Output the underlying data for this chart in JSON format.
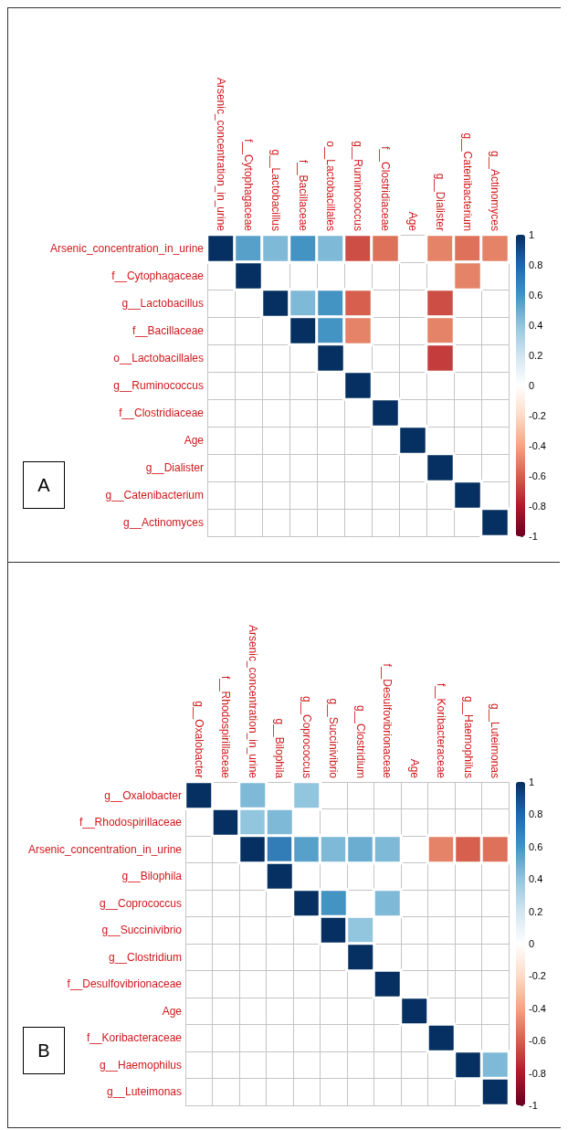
{
  "chart_data": [
    {
      "type": "heatmap",
      "categories": [
        "Arsenic_concentration_in_urine",
        "f__Cytophagaceae",
        "g__Lactobacillus",
        "f__Bacillaceae",
        "o__Lactobacillales",
        "g__Ruminococcus",
        "f__Clostridiaceae",
        "Age",
        "g__Dialister",
        "g__Catenibacterium",
        "g__Actinomyces"
      ],
      "y_categories": [
        "Arsenic_concentration_in_urine",
        "f__Cytophagaceae",
        "g__Lactobacillus",
        "f__Bacillaceae",
        "o__Lactobacillales",
        "g__Ruminococcus",
        "f__Clostridiaceae",
        "Age",
        "g__Dialister",
        "g__Catenibacterium",
        "g__Actinomyces"
      ],
      "cells": [
        [
          1,
          0.55,
          0.45,
          0.6,
          0.45,
          -0.65,
          -0.55,
          null,
          -0.5,
          -0.55,
          -0.5
        ],
        [
          null,
          1,
          null,
          null,
          null,
          null,
          null,
          null,
          null,
          -0.5,
          null
        ],
        [
          null,
          null,
          1,
          0.45,
          0.6,
          -0.6,
          null,
          null,
          -0.65,
          null,
          null
        ],
        [
          null,
          null,
          null,
          1,
          0.6,
          -0.5,
          null,
          null,
          -0.5,
          null,
          null
        ],
        [
          null,
          null,
          null,
          null,
          1,
          null,
          null,
          null,
          -0.7,
          null,
          null
        ],
        [
          null,
          null,
          null,
          null,
          null,
          1,
          null,
          null,
          null,
          null,
          null
        ],
        [
          null,
          null,
          null,
          null,
          null,
          null,
          1,
          null,
          null,
          null,
          null
        ],
        [
          null,
          null,
          null,
          null,
          null,
          null,
          null,
          1,
          null,
          null,
          null
        ],
        [
          null,
          null,
          null,
          null,
          null,
          null,
          null,
          null,
          1,
          null,
          null
        ],
        [
          null,
          null,
          null,
          null,
          null,
          null,
          null,
          null,
          null,
          1,
          null
        ],
        [
          null,
          null,
          null,
          null,
          null,
          null,
          null,
          null,
          null,
          null,
          1
        ]
      ],
      "clim": [
        -1,
        1
      ],
      "cticks": [
        -1,
        -0.8,
        -0.6,
        -0.4,
        -0.2,
        0,
        0.2,
        0.4,
        0.6,
        0.8,
        1
      ],
      "grid": true,
      "annotations": [
        "A"
      ]
    },
    {
      "type": "heatmap",
      "categories": [
        "g__Oxalobacter",
        "f__Rhodospirillaceae",
        "Arsenic_concentration_in_urine",
        "g__Bilophila",
        "g__Coprococcus",
        "g__Succinivibrio",
        "g__Clostridium",
        "f__Desulfovibrionaceae",
        "Age",
        "f__Koribacteraceae",
        "g__Haemophilus",
        "g__Luteimonas"
      ],
      "y_categories": [
        "g__Oxalobacter",
        "f__Rhodospirillaceae",
        "Arsenic_concentration_in_urine",
        "g__Bilophila",
        "g__Coprococcus",
        "g__Succinivibrio",
        "g__Clostridium",
        "f__Desulfovibrionaceae",
        "Age",
        "f__Koribacteraceae",
        "g__Haemophilus",
        "g__Luteimonas"
      ],
      "cells": [
        [
          1,
          null,
          0.45,
          null,
          0.4,
          null,
          null,
          null,
          null,
          null,
          null,
          null
        ],
        [
          null,
          1,
          0.4,
          0.45,
          null,
          null,
          null,
          null,
          null,
          null,
          null,
          null
        ],
        [
          null,
          null,
          1,
          0.7,
          0.55,
          0.45,
          0.5,
          0.45,
          null,
          -0.5,
          -0.6,
          -0.55
        ],
        [
          null,
          null,
          null,
          1,
          null,
          null,
          null,
          null,
          null,
          null,
          null,
          null
        ],
        [
          null,
          null,
          null,
          null,
          1,
          0.6,
          null,
          0.45,
          null,
          null,
          null,
          null
        ],
        [
          null,
          null,
          null,
          null,
          null,
          1,
          0.4,
          null,
          null,
          null,
          null,
          null
        ],
        [
          null,
          null,
          null,
          null,
          null,
          null,
          1,
          null,
          null,
          null,
          null,
          null
        ],
        [
          null,
          null,
          null,
          null,
          null,
          null,
          null,
          1,
          null,
          null,
          null,
          null
        ],
        [
          null,
          null,
          null,
          null,
          null,
          null,
          null,
          null,
          1,
          null,
          null,
          null
        ],
        [
          null,
          null,
          null,
          null,
          null,
          null,
          null,
          null,
          null,
          1,
          null,
          null
        ],
        [
          null,
          null,
          null,
          null,
          null,
          null,
          null,
          null,
          null,
          null,
          1,
          0.45
        ],
        [
          null,
          null,
          null,
          null,
          null,
          null,
          null,
          null,
          null,
          null,
          null,
          1
        ]
      ],
      "clim": [
        -1,
        1
      ],
      "cticks": [
        -1,
        -0.8,
        -0.6,
        -0.4,
        -0.2,
        0,
        0.2,
        0.4,
        0.6,
        0.8,
        1
      ],
      "grid": true,
      "annotations": [
        "B"
      ]
    }
  ]
}
